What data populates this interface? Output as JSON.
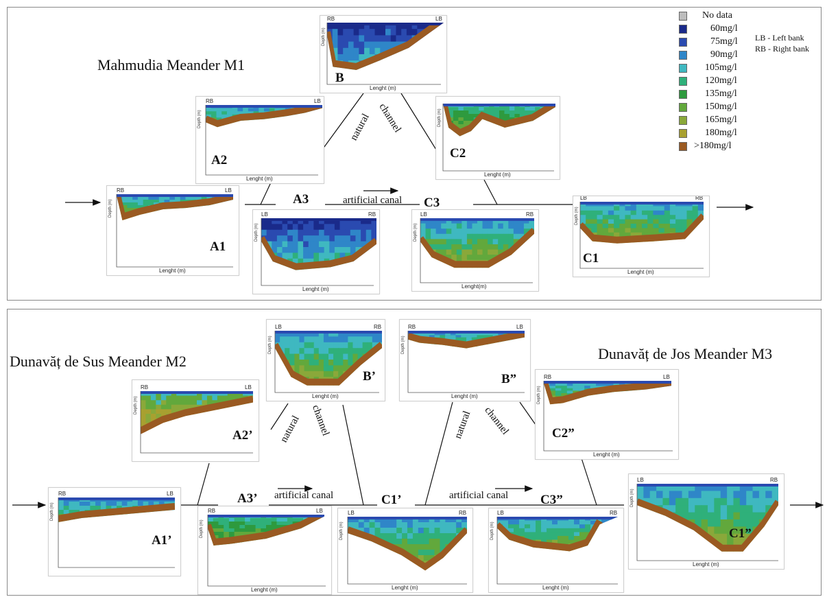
{
  "titles": {
    "m1": "Mahmudia Meander M1",
    "m2": "Dunavăț de Sus Meander M2",
    "m3": "Dunavăț de Jos Meander M3"
  },
  "legend": {
    "items": [
      {
        "label": "No data",
        "color": "#bdbdbd"
      },
      {
        "label": "60mg/l",
        "color": "#1a2a8a"
      },
      {
        "label": "75mg/l",
        "color": "#2a4ab0"
      },
      {
        "label": "90mg/l",
        "color": "#2f86c8"
      },
      {
        "label": "105mg/l",
        "color": "#3fb8c0"
      },
      {
        "label": "120mg/l",
        "color": "#2fb07a"
      },
      {
        "label": "135mg/l",
        "color": "#2e9a3e"
      },
      {
        "label": "150mg/l",
        "color": "#62a83c"
      },
      {
        "label": "165mg/l",
        "color": "#8aa83a"
      },
      {
        "label": "180mg/l",
        "color": "#a8a030"
      },
      {
        "label": ">180mg/l",
        "color": "#9a5a22"
      }
    ],
    "notes": [
      "LB - Left bank",
      "RB - Right bank"
    ]
  },
  "connectors": {
    "natural": "natural",
    "channel": "channel",
    "artificial_canal": "artificial canal"
  },
  "axis_text": {
    "depth": "Depth (m)",
    "length": "Lenght (m)",
    "length_alt": "Lenght(m)"
  },
  "panels": [
    {
      "id": "B",
      "label": "B",
      "left_bank": "RB",
      "right_bank": "LB",
      "xlabel": "Lenght (m)",
      "palette": "blue"
    },
    {
      "id": "A2",
      "label": "A2",
      "left_bank": "RB",
      "right_bank": "LB",
      "xlabel": "Lenght (m)",
      "palette": "mixed"
    },
    {
      "id": "C2",
      "label": "C2",
      "left_bank": "",
      "right_bank": "",
      "xlabel": "Lenght (m)",
      "palette": "green"
    },
    {
      "id": "A1",
      "label": "A1",
      "left_bank": "RB",
      "right_bank": "LB",
      "xlabel": "Lenght (m)",
      "palette": "mixed"
    },
    {
      "id": "A3",
      "label": "A3",
      "left_bank": "LB",
      "right_bank": "RB",
      "xlabel": "Lenght (m)",
      "palette": "blue"
    },
    {
      "id": "C3",
      "label": "C3",
      "left_bank": "LB",
      "right_bank": "RB",
      "xlabel": "Lenght(m)",
      "palette": "mixed"
    },
    {
      "id": "C1",
      "label": "C1",
      "left_bank": "LB",
      "right_bank": "RB",
      "xlabel": "Lenght (m)",
      "palette": "mixed"
    },
    {
      "id": "B1p",
      "label": "B’",
      "left_bank": "LB",
      "right_bank": "RB",
      "xlabel": "Lenght (m)",
      "palette": "mixed"
    },
    {
      "id": "B2p",
      "label": "B”",
      "left_bank": "RB",
      "right_bank": "LB",
      "xlabel": "Lenght (m)",
      "palette": "mixed"
    },
    {
      "id": "A2p",
      "label": "A2’",
      "left_bank": "RB",
      "right_bank": "LB",
      "xlabel": "",
      "palette": "brown"
    },
    {
      "id": "C2pp",
      "label": "C2”",
      "left_bank": "RB",
      "right_bank": "LB",
      "xlabel": "Lenght (m)",
      "palette": "mixed"
    },
    {
      "id": "A1p",
      "label": "A1’",
      "left_bank": "RB",
      "right_bank": "LB",
      "xlabel": "",
      "palette": "mixed"
    },
    {
      "id": "A3p",
      "label": "A3’",
      "left_bank": "RB",
      "right_bank": "LB",
      "xlabel": "Lenght (m)",
      "palette": "green"
    },
    {
      "id": "C1p",
      "label": "C1’",
      "left_bank": "LB",
      "right_bank": "RB",
      "xlabel": "Lenght (m)",
      "palette": "mixed"
    },
    {
      "id": "C3pp",
      "label": "C3”",
      "left_bank": "LB",
      "right_bank": "RB",
      "xlabel": "Lenght (m)",
      "palette": "mixed"
    },
    {
      "id": "C1pp",
      "label": "C1”",
      "left_bank": "LB",
      "right_bank": "RB",
      "xlabel": "Lenght (m)",
      "palette": "mixed"
    }
  ]
}
